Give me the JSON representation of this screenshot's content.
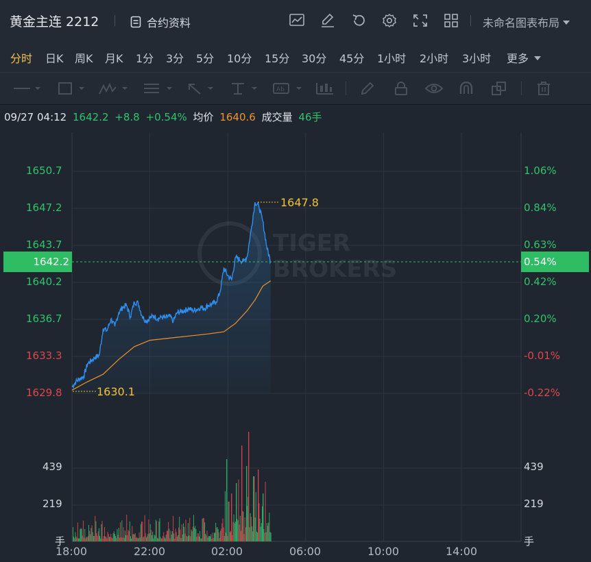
{
  "header": {
    "title": "黄金主连 2212",
    "contract_info_label": "合约资料",
    "layout_label": "未命名图表布局"
  },
  "timeframes": [
    {
      "label": "分时",
      "active": true
    },
    {
      "label": "日K"
    },
    {
      "label": "周K"
    },
    {
      "label": "月K"
    },
    {
      "label": "1分"
    },
    {
      "label": "3分"
    },
    {
      "label": "5分"
    },
    {
      "label": "10分"
    },
    {
      "label": "15分"
    },
    {
      "label": "30分"
    },
    {
      "label": "45分"
    },
    {
      "label": "1小时"
    },
    {
      "label": "2小时"
    },
    {
      "label": "3小时"
    },
    {
      "label": "更多"
    }
  ],
  "drawing_tools": [
    "line-tool-icon",
    "rectangle-tool-icon",
    "pattern-tool-icon",
    "fib-tool-icon",
    "arrow-tool-icon",
    "measure-tool-icon",
    "text-tool-icon",
    "indicator-tool-icon",
    "pen-icon",
    "lock-icon",
    "eye-icon",
    "magnet-icon",
    "layers-icon",
    "trash-icon"
  ],
  "info": {
    "datetime": "09/27 04:12",
    "price": "1642.2",
    "change": "+8.8",
    "change_pct": "+0.54%",
    "avg_label": "均价",
    "avg_value": "1640.6",
    "volume_label": "成交量",
    "volume_value": "46手"
  },
  "watermark": [
    "TIGER",
    "BROKERS"
  ],
  "colors": {
    "up": "#31c36b",
    "down": "#e0464c",
    "price_line": "#2f8ff0",
    "avg_line": "#f0922b",
    "annotation": "#f2c230",
    "tag_bg": "#2ebd63"
  },
  "chart_data": {
    "type": "line",
    "x_ticks": [
      "18:00",
      "22:00",
      "02:00",
      "06:00",
      "10:00",
      "14:00"
    ],
    "y_ticks_left": [
      "1650.7",
      "1647.2",
      "1643.7",
      "1640.2",
      "1636.7",
      "1633.3",
      "1629.8"
    ],
    "y_ticks_right": [
      "1.06%",
      "0.84%",
      "0.63%",
      "0.42%",
      "0.20%",
      "-0.01%",
      "-0.22%"
    ],
    "current_price_tag": "1642.2",
    "current_pct_tag": "0.54%",
    "high_label": "1647.8",
    "low_label": "1630.1",
    "volume_ticks": [
      "439",
      "219"
    ],
    "volume_unit": "手",
    "ylim": [
      1629.8,
      1650.7
    ],
    "price_series": [
      [
        0,
        1630.4
      ],
      [
        0.2,
        1630.9
      ],
      [
        0.4,
        1631.2
      ],
      [
        0.6,
        1631.4
      ],
      [
        0.8,
        1632.6
      ],
      [
        1.0,
        1632.9
      ],
      [
        1.2,
        1633.2
      ],
      [
        1.4,
        1633.4
      ],
      [
        1.6,
        1635.9
      ],
      [
        1.8,
        1635.7
      ],
      [
        2.0,
        1636.8
      ],
      [
        2.2,
        1636.1
      ],
      [
        2.4,
        1637.4
      ],
      [
        2.6,
        1637.9
      ],
      [
        2.8,
        1638.1
      ],
      [
        3.0,
        1637.0
      ],
      [
        3.2,
        1638.4
      ],
      [
        3.4,
        1638.3
      ],
      [
        3.6,
        1637.1
      ],
      [
        3.8,
        1636.6
      ],
      [
        4.0,
        1636.9
      ],
      [
        4.2,
        1637.1
      ],
      [
        4.4,
        1636.8
      ],
      [
        4.6,
        1637.0
      ],
      [
        4.8,
        1636.9
      ],
      [
        5.0,
        1637.1
      ],
      [
        5.2,
        1636.6
      ],
      [
        5.4,
        1637.4
      ],
      [
        5.6,
        1637.5
      ],
      [
        5.8,
        1637.6
      ],
      [
        6.0,
        1637.8
      ],
      [
        6.2,
        1637.6
      ],
      [
        6.4,
        1637.7
      ],
      [
        6.6,
        1637.9
      ],
      [
        6.8,
        1637.8
      ],
      [
        7.0,
        1638.1
      ],
      [
        7.2,
        1638.2
      ],
      [
        7.4,
        1638.4
      ],
      [
        7.6,
        1639.3
      ],
      [
        7.8,
        1641.6
      ],
      [
        8.0,
        1640.9
      ],
      [
        8.2,
        1640.5
      ],
      [
        8.4,
        1642.6
      ],
      [
        8.6,
        1642.4
      ],
      [
        8.8,
        1642.2
      ],
      [
        9.0,
        1642.7
      ],
      [
        9.2,
        1645.2
      ],
      [
        9.4,
        1647.8
      ],
      [
        9.6,
        1647.4
      ],
      [
        9.8,
        1646.0
      ],
      [
        10.0,
        1643.6
      ],
      [
        10.2,
        1642.2
      ]
    ],
    "avg_series": [
      [
        0,
        1630.1
      ],
      [
        0.8,
        1630.9
      ],
      [
        1.6,
        1631.6
      ],
      [
        2.4,
        1633.0
      ],
      [
        3.2,
        1634.2
      ],
      [
        4.0,
        1634.8
      ],
      [
        5.0,
        1635.0
      ],
      [
        6.0,
        1635.2
      ],
      [
        7.0,
        1635.4
      ],
      [
        7.8,
        1635.6
      ],
      [
        8.4,
        1636.4
      ],
      [
        9.0,
        1637.6
      ],
      [
        9.4,
        1638.6
      ],
      [
        9.8,
        1639.9
      ],
      [
        10.2,
        1640.4
      ]
    ]
  }
}
